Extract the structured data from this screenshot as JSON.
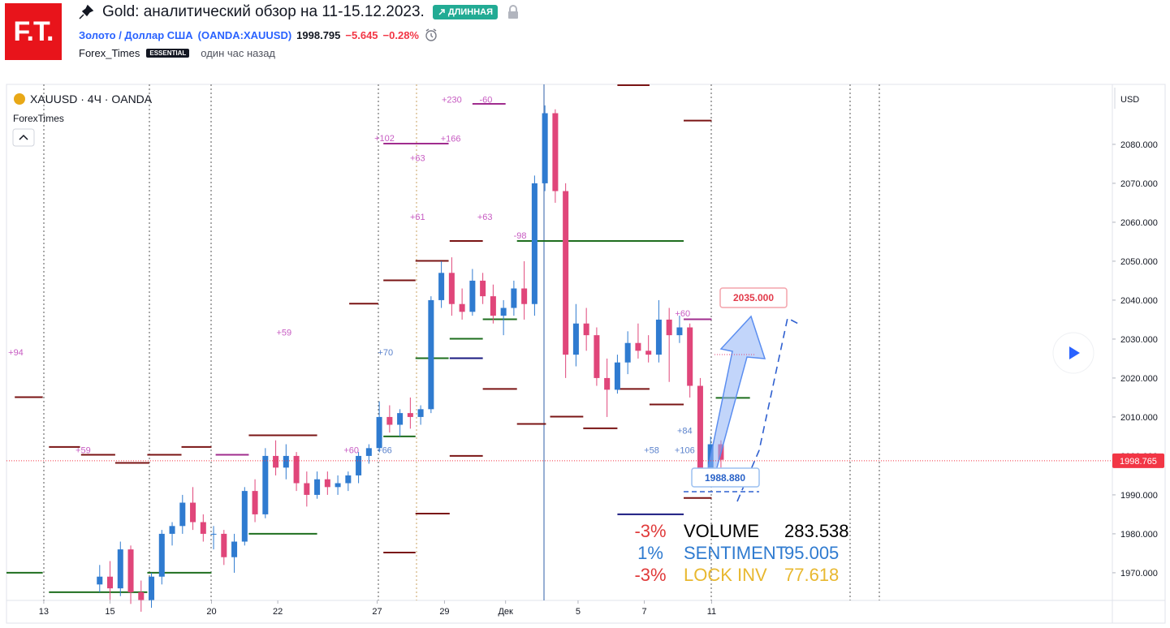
{
  "header": {
    "logo": "F.T.",
    "title": "Gold: аналитический обзор на 11-15.12.2023.",
    "badge": "ДЛИННАЯ",
    "symbol_name": "Золото / Доллар США",
    "symbol_code": "(OANDA:XAUUSD)",
    "price": "1998.795",
    "change": "−5.645",
    "change_pct": "−0.28%",
    "author": "Forex_Times",
    "author_badge": "ESSENTIAL",
    "time": "один час назад"
  },
  "chart_data": {
    "type": "candlestick",
    "legend_title": "XAUUSD · 4Ч · OANDA",
    "indicator": "ForexTimes",
    "currency": "USD",
    "up_color": "#2f7bd0",
    "down_color": "#e0467a",
    "x": [
      0,
      1,
      2,
      3,
      4,
      5,
      6,
      7,
      8,
      9,
      10,
      11,
      12,
      13,
      14,
      15,
      16,
      17,
      18,
      19,
      20,
      21,
      22,
      23,
      24,
      25,
      26,
      27,
      28,
      29,
      30,
      31,
      32,
      33,
      34,
      35,
      36,
      37,
      38,
      39,
      40,
      41,
      42,
      43,
      44,
      45,
      46,
      47,
      48,
      49,
      50,
      51,
      52,
      53,
      54,
      55,
      56,
      57,
      58,
      59,
      60
    ],
    "open": [
      1967,
      1969,
      1966,
      1976,
      1965,
      1963,
      1969,
      1980,
      1982,
      1988,
      1983,
      1980,
      1980,
      1974,
      1978,
      1991,
      1985,
      2000,
      1997,
      2000,
      1993,
      1990,
      1994,
      1992,
      1993,
      1995,
      2000,
      2002,
      2010,
      2008,
      2011,
      2010,
      2012,
      2040,
      2047,
      2039,
      2037,
      2045,
      2041,
      2036,
      2038,
      2043,
      2039,
      2070,
      2088,
      2068,
      2026,
      2034,
      2031,
      2020,
      2017,
      2024,
      2029,
      2027,
      2026,
      2035,
      2031,
      2033,
      2018,
      1996,
      2003
    ],
    "high": [
      1972,
      1973,
      1978,
      1977,
      1968,
      1970,
      1981,
      1983,
      1990,
      1992,
      1985,
      1982,
      1981,
      1980,
      1992,
      1994,
      2002,
      2004,
      2003,
      2001,
      1996,
      1996,
      1996,
      1995,
      1996,
      2001,
      2003,
      2014,
      2013,
      2012,
      2015,
      2013,
      2041,
      2050,
      2051,
      2043,
      2048,
      2047,
      2044,
      2040,
      2045,
      2050,
      2072,
      2090,
      2089,
      2070,
      2039,
      2038,
      2033,
      2025,
      2026,
      2032,
      2034,
      2031,
      2040,
      2038,
      2036,
      2034,
      2020,
      2005,
      2004
    ],
    "low": [
      1965,
      1963,
      1964,
      1962,
      1960,
      1961,
      1967,
      1977,
      1980,
      1981,
      1978,
      1976,
      1972,
      1970,
      1977,
      1983,
      1984,
      1995,
      1994,
      1991,
      1987,
      1989,
      1990,
      1990,
      1991,
      1993,
      1998,
      2001,
      2006,
      2005,
      2007,
      2008,
      2011,
      2038,
      2036,
      2035,
      2036,
      2039,
      2034,
      2031,
      2036,
      2035,
      2036,
      2068,
      2065,
      2020,
      2023,
      2027,
      2018,
      2010,
      2016,
      2021,
      2025,
      2024,
      2024,
      2019,
      2029,
      2015,
      1994,
      1995,
      1997
    ],
    "close": [
      1969,
      1966,
      1976,
      1965,
      1963,
      1969,
      1980,
      1982,
      1988,
      1983,
      1980,
      1980,
      1974,
      1978,
      1991,
      1985,
      2000,
      1997,
      2000,
      1993,
      1990,
      1994,
      1992,
      1993,
      1995,
      2000,
      2002,
      2010,
      2008,
      2011,
      2010,
      2012,
      2040,
      2047,
      2039,
      2037,
      2045,
      2041,
      2036,
      2038,
      2043,
      2039,
      2070,
      2088,
      2068,
      2026,
      2034,
      2031,
      2020,
      2017,
      2024,
      2029,
      2027,
      2026,
      2035,
      2031,
      2033,
      2018,
      1996,
      2003,
      1999
    ],
    "xlim": [
      -9,
      97.8
    ],
    "xticks": [
      {
        "value": -5.4,
        "label": "13"
      },
      {
        "value": 1.0,
        "label": "15"
      },
      {
        "value": 10.8,
        "label": "20"
      },
      {
        "value": 17.2,
        "label": "22"
      },
      {
        "value": 26.8,
        "label": "27"
      },
      {
        "value": 33.3,
        "label": "29"
      },
      {
        "value": 39.2,
        "label": "Дек"
      },
      {
        "value": 46.2,
        "label": "5"
      },
      {
        "value": 52.6,
        "label": "7"
      },
      {
        "value": 59.1,
        "label": "11"
      }
    ],
    "ylim": [
      1962.9,
      2095.4
    ],
    "yticks": [
      {
        "value": 1970,
        "label": "1970.000"
      },
      {
        "value": 1980,
        "label": "1980.000"
      },
      {
        "value": 1990,
        "label": "1990.000"
      },
      {
        "value": 2000,
        "label": "2000.000"
      },
      {
        "value": 2010,
        "label": "2010.000"
      },
      {
        "value": 2020,
        "label": "2020.000"
      },
      {
        "value": 2030,
        "label": "2030.000"
      },
      {
        "value": 2040,
        "label": "2040.000"
      },
      {
        "value": 2050,
        "label": "2050.000"
      },
      {
        "value": 2060,
        "label": "2060.000"
      },
      {
        "value": 2070,
        "label": "2070.000"
      },
      {
        "value": 2080,
        "label": "2080.000"
      }
    ],
    "last_price": 1998.765,
    "last_price_color": "#f23645",
    "levels": [
      {
        "color": "#7a1414",
        "segments": [
          [
            -8.2,
            -5.5,
            2015.1
          ],
          [
            -4.9,
            -1.9,
            2002.3
          ],
          [
            -1.8,
            1.5,
            2000.3
          ],
          [
            1.5,
            4.8,
            1998.2
          ],
          [
            4.6,
            7.9,
            2000.3
          ],
          [
            7.9,
            10.8,
            2002.3
          ],
          [
            24.1,
            26.9,
            2039.1
          ],
          [
            27.4,
            30.5,
            2045.1
          ],
          [
            30.5,
            33.7,
            2050.1
          ],
          [
            33.8,
            37.0,
            2055.2
          ],
          [
            37.0,
            40.3,
            2017.2
          ],
          [
            40.3,
            43.1,
            2008.2
          ],
          [
            43.5,
            46.7,
            2010.1
          ],
          [
            46.7,
            50.0,
            2007.1
          ],
          [
            50.0,
            53.1,
            2095.2
          ],
          [
            50.0,
            53.1,
            2017.2
          ],
          [
            53.1,
            56.4,
            2013.2
          ],
          [
            56.4,
            59.1,
            2086.1
          ],
          [
            56.4,
            59.1,
            1989.2
          ],
          [
            30.5,
            33.8,
            1985.2
          ],
          [
            27.4,
            30.5,
            1975.2
          ],
          [
            33.8,
            37.0,
            2000.0
          ],
          [
            14.4,
            21.0,
            2005.3
          ]
        ]
      },
      {
        "color": "#1e6e1e",
        "segments": [
          [
            -9,
            -5.5,
            1970.0
          ],
          [
            -4.9,
            4.6,
            1965.0
          ],
          [
            4.6,
            10.8,
            1970.0
          ],
          [
            14.4,
            21.0,
            1980.0
          ],
          [
            27.4,
            30.5,
            2005.0
          ],
          [
            30.5,
            33.7,
            2025.1
          ],
          [
            33.8,
            37.0,
            2030.1
          ],
          [
            37.0,
            40.3,
            2035.1
          ],
          [
            40.3,
            56.4,
            2055.2
          ],
          [
            59.5,
            62.8,
            2014.9
          ]
        ]
      },
      {
        "color": "#a02c8e",
        "segments": [
          [
            11.2,
            14.4,
            2000.3
          ],
          [
            27.4,
            33.7,
            2080.2
          ],
          [
            36.0,
            39.2,
            2090.4
          ],
          [
            56.4,
            59.1,
            2035.1
          ]
        ]
      },
      {
        "color": "#1a1a80",
        "segments": [
          [
            50.0,
            56.4,
            1985.0
          ],
          [
            33.8,
            37.0,
            2025.1
          ]
        ]
      }
    ],
    "level_labels": [
      {
        "color": "#c75bc2",
        "items": [
          {
            "text": "+94",
            "x": -8.1,
            "y": 2026.6
          },
          {
            "text": "+59",
            "x": -1.6,
            "y": 2001.5
          },
          {
            "text": "+59",
            "x": 17.8,
            "y": 2031.8
          },
          {
            "text": "+60",
            "x": 24.3,
            "y": 2001.5
          },
          {
            "text": "+102",
            "x": 27.5,
            "y": 2081.7
          },
          {
            "text": "+166",
            "x": 33.9,
            "y": 2081.5
          },
          {
            "text": "+63",
            "x": 30.7,
            "y": 2076.5
          },
          {
            "text": "+230",
            "x": 34.0,
            "y": 2091.5
          },
          {
            "text": "-60",
            "x": 37.3,
            "y": 2091.5
          },
          {
            "text": "+61",
            "x": 30.7,
            "y": 2061.4
          },
          {
            "text": "+63",
            "x": 37.2,
            "y": 2061.4
          },
          {
            "text": "-98",
            "x": 40.6,
            "y": 2056.6
          },
          {
            "text": "+60",
            "x": 56.3,
            "y": 2036.6
          }
        ]
      },
      {
        "color": "#5b82cc",
        "items": [
          {
            "text": "+66",
            "x": 27.5,
            "y": 2001.5
          },
          {
            "text": "+70",
            "x": 27.6,
            "y": 2026.6
          },
          {
            "text": "+84",
            "x": 56.5,
            "y": 2006.5
          },
          {
            "text": "+58",
            "x": 53.3,
            "y": 2001.5
          },
          {
            "text": "+106",
            "x": 56.5,
            "y": 2001.5
          }
        ]
      }
    ],
    "annotations": {
      "target": "2035.000",
      "stop": "1988.880"
    }
  },
  "panel": {
    "rows": [
      [
        "-3%",
        "VOLUME",
        "283.538"
      ],
      [
        "1%",
        "SENTIMENT",
        "95.005"
      ],
      [
        "-3%",
        "LOCK INV",
        "77.618"
      ]
    ]
  }
}
